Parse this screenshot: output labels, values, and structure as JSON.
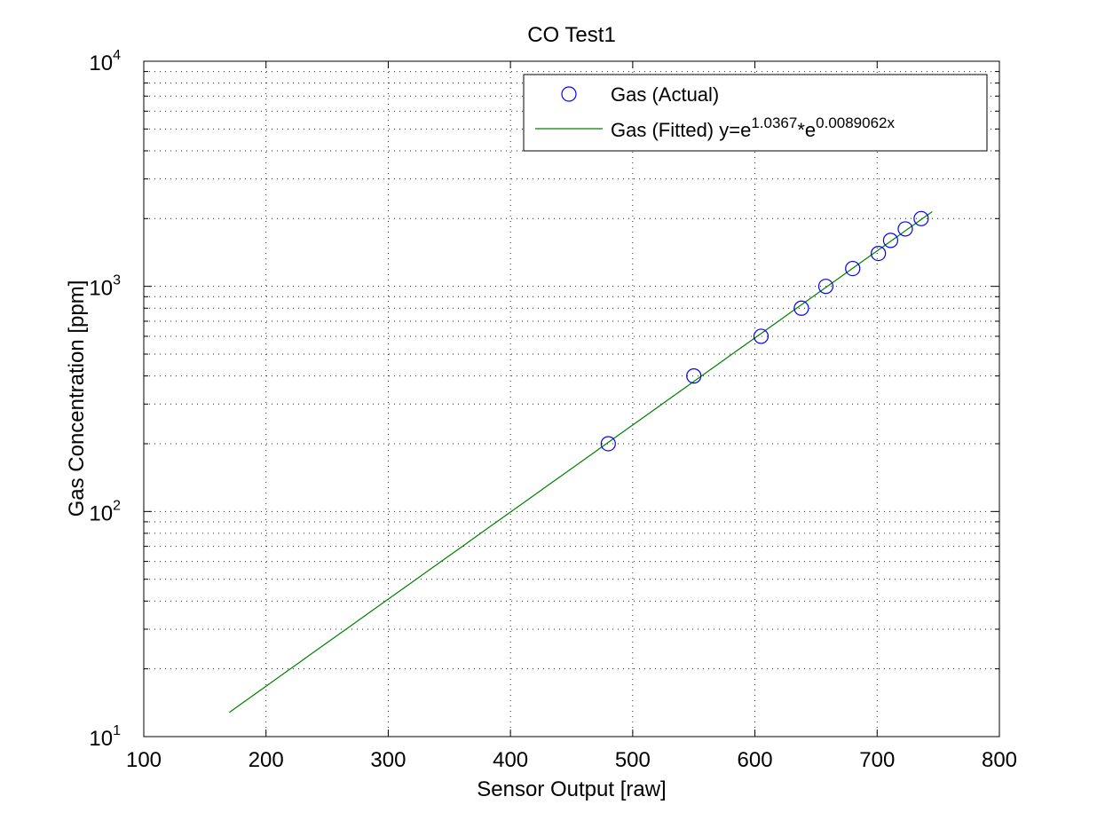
{
  "chart_data": {
    "type": "scatter",
    "title": "CO Test1",
    "xlabel": "Sensor Output [raw]",
    "ylabel": "Gas Concentration [ppm]",
    "xlim": [
      100,
      800
    ],
    "ylim": [
      10,
      10000
    ],
    "yscale": "log",
    "grid": true,
    "legend_position": "top-right",
    "x_ticks": [
      "100",
      "200",
      "300",
      "400",
      "500",
      "600",
      "700",
      "800"
    ],
    "y_ticks": [
      {
        "base": "10",
        "exp": "1",
        "value": 10
      },
      {
        "base": "10",
        "exp": "2",
        "value": 100
      },
      {
        "base": "10",
        "exp": "3",
        "value": 1000
      },
      {
        "base": "10",
        "exp": "4",
        "value": 10000
      }
    ],
    "series": [
      {
        "name": "Gas (Actual)",
        "kind": "scatter",
        "marker": "circle-open",
        "color": "#0000ff",
        "x": [
          480,
          550,
          605,
          638,
          658,
          680,
          701,
          711,
          723,
          736
        ],
        "y": [
          200,
          400,
          600,
          800,
          1000,
          1200,
          1400,
          1600,
          1800,
          2000
        ]
      },
      {
        "name": "Gas (Fitted)",
        "kind": "line",
        "color": "#008000",
        "fit": {
          "a": 1.0367,
          "b": 0.0089062
        },
        "x_range": [
          170,
          745
        ],
        "formula": {
          "prefix": "Gas (Fitted) y=e",
          "exp1": "1.0367",
          "mid": "*e",
          "exp2": "0.0089062x"
        }
      }
    ]
  }
}
